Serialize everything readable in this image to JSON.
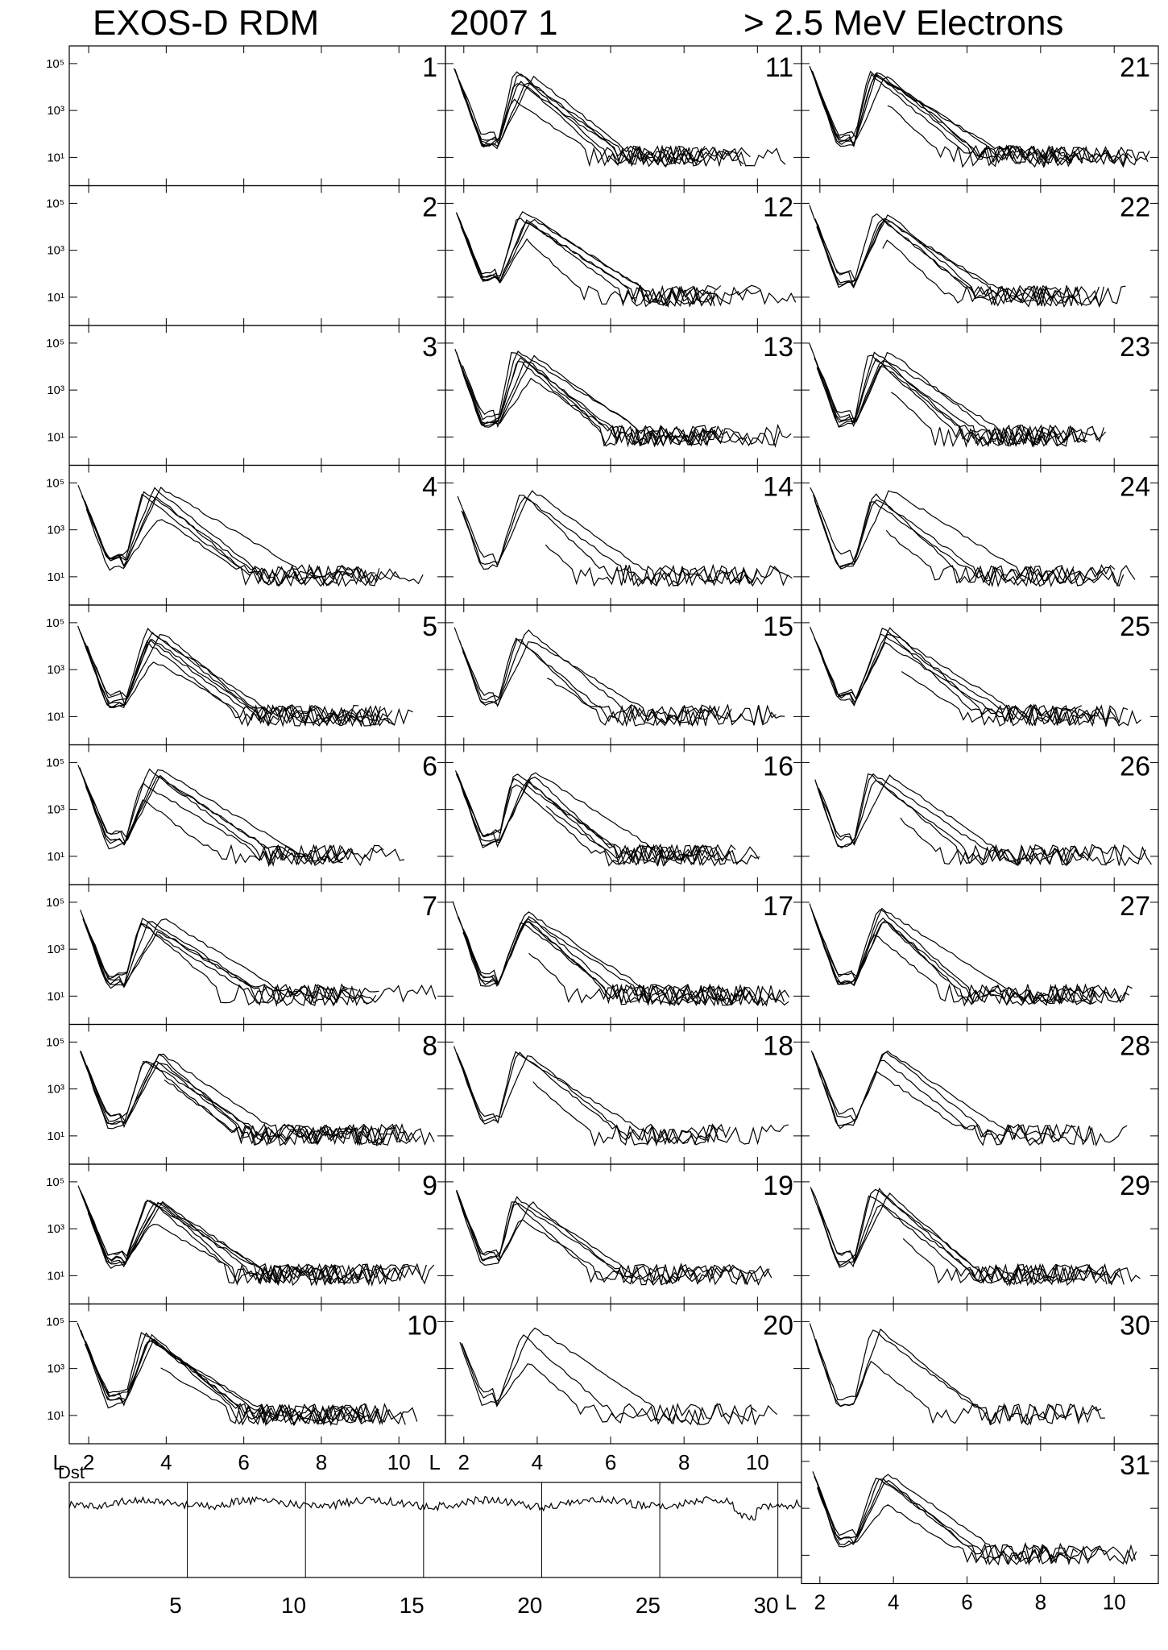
{
  "header": {
    "instrument": "EXOS-D RDM",
    "year_month": "2007    1",
    "particle": "> 2.5  MeV Electrons"
  },
  "chart_data": {
    "type": "line",
    "xlabel": "L",
    "x_ticks": [
      2,
      4,
      6,
      8,
      10
    ],
    "xlim": [
      1.5,
      11.2
    ],
    "yscale": "log",
    "y_ticks": [
      "10⁵",
      "10³",
      "10¹"
    ],
    "ylim": [
      1,
      300000
    ],
    "line_color": "#000000",
    "days_without_data": [
      1,
      2,
      3
    ],
    "days": [
      {
        "label": "1"
      },
      {
        "label": "2"
      },
      {
        "label": "3"
      },
      {
        "label": "4"
      },
      {
        "label": "5"
      },
      {
        "label": "6"
      },
      {
        "label": "7"
      },
      {
        "label": "8"
      },
      {
        "label": "9"
      },
      {
        "label": "10"
      },
      {
        "label": "11"
      },
      {
        "label": "12"
      },
      {
        "label": "13"
      },
      {
        "label": "14"
      },
      {
        "label": "15"
      },
      {
        "label": "16"
      },
      {
        "label": "17"
      },
      {
        "label": "18"
      },
      {
        "label": "19"
      },
      {
        "label": "20"
      },
      {
        "label": "21"
      },
      {
        "label": "22"
      },
      {
        "label": "23"
      },
      {
        "label": "24"
      },
      {
        "label": "25"
      },
      {
        "label": "26"
      },
      {
        "label": "27"
      },
      {
        "label": "28"
      },
      {
        "label": "29"
      },
      {
        "label": "30"
      },
      {
        "label": "31"
      }
    ],
    "dst_panel": {
      "label": "Dst",
      "x_ticks": [
        5,
        10,
        15,
        20,
        25,
        30
      ],
      "xlim": [
        0.5,
        31.5
      ]
    }
  }
}
